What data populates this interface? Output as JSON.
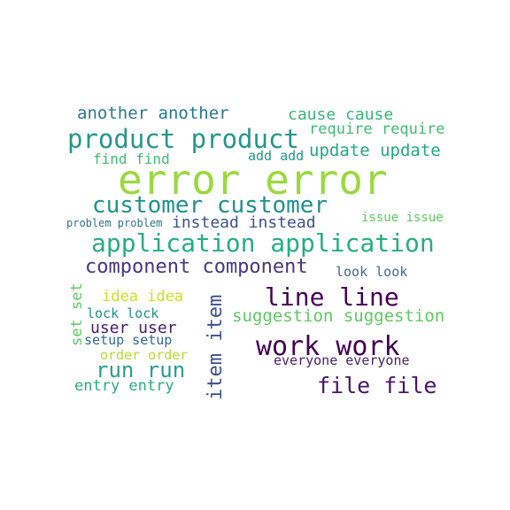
{
  "words": [
    {
      "id": "error",
      "text": "error error",
      "color": "#9ad93e"
    },
    {
      "id": "product",
      "text": "product product",
      "color": "#25968b"
    },
    {
      "id": "customer",
      "text": "customer customer",
      "color": "#21918c"
    },
    {
      "id": "application",
      "text": "application application",
      "color": "#27ad81"
    },
    {
      "id": "component",
      "text": "component component",
      "color": "#453781"
    },
    {
      "id": "line",
      "text": "line line",
      "color": "#440154"
    },
    {
      "id": "work",
      "text": "work work",
      "color": "#440154"
    },
    {
      "id": "file",
      "text": "file file",
      "color": "#481668"
    },
    {
      "id": "run",
      "text": "run run",
      "color": "#2a9d8f"
    },
    {
      "id": "item",
      "text": "item item",
      "color": "#3b528b"
    },
    {
      "id": "another",
      "text": "another another",
      "color": "#2a788e"
    },
    {
      "id": "cause",
      "text": "cause cause",
      "color": "#35b779"
    },
    {
      "id": "require",
      "text": "require require",
      "color": "#3dbc74"
    },
    {
      "id": "update",
      "text": "update update",
      "color": "#22a884"
    },
    {
      "id": "find",
      "text": "find find",
      "color": "#3fbc73"
    },
    {
      "id": "add",
      "text": "add add",
      "color": "#1f988b"
    },
    {
      "id": "instead",
      "text": "instead instead",
      "color": "#3b528b"
    },
    {
      "id": "issue",
      "text": "issue issue",
      "color": "#5ec962"
    },
    {
      "id": "problem",
      "text": "problem problem",
      "color": "#2c728e"
    },
    {
      "id": "look",
      "text": "look look",
      "color": "#3e6a8e"
    },
    {
      "id": "suggestion",
      "text": "suggestion suggestion",
      "color": "#5ec962"
    },
    {
      "id": "idea",
      "text": "idea idea",
      "color": "#cde11d"
    },
    {
      "id": "set",
      "text": "set set",
      "color": "#5ec962"
    },
    {
      "id": "lock",
      "text": "lock lock",
      "color": "#218f8d"
    },
    {
      "id": "user",
      "text": "user user",
      "color": "#4b1b6b"
    },
    {
      "id": "setup",
      "text": "setup setup",
      "color": "#2f6b8e"
    },
    {
      "id": "order",
      "text": "order order",
      "color": "#b5de2b"
    },
    {
      "id": "everyone",
      "text": "everyone everyone",
      "color": "#481d6f"
    },
    {
      "id": "entry",
      "text": "entry entry",
      "color": "#27ad81"
    }
  ]
}
